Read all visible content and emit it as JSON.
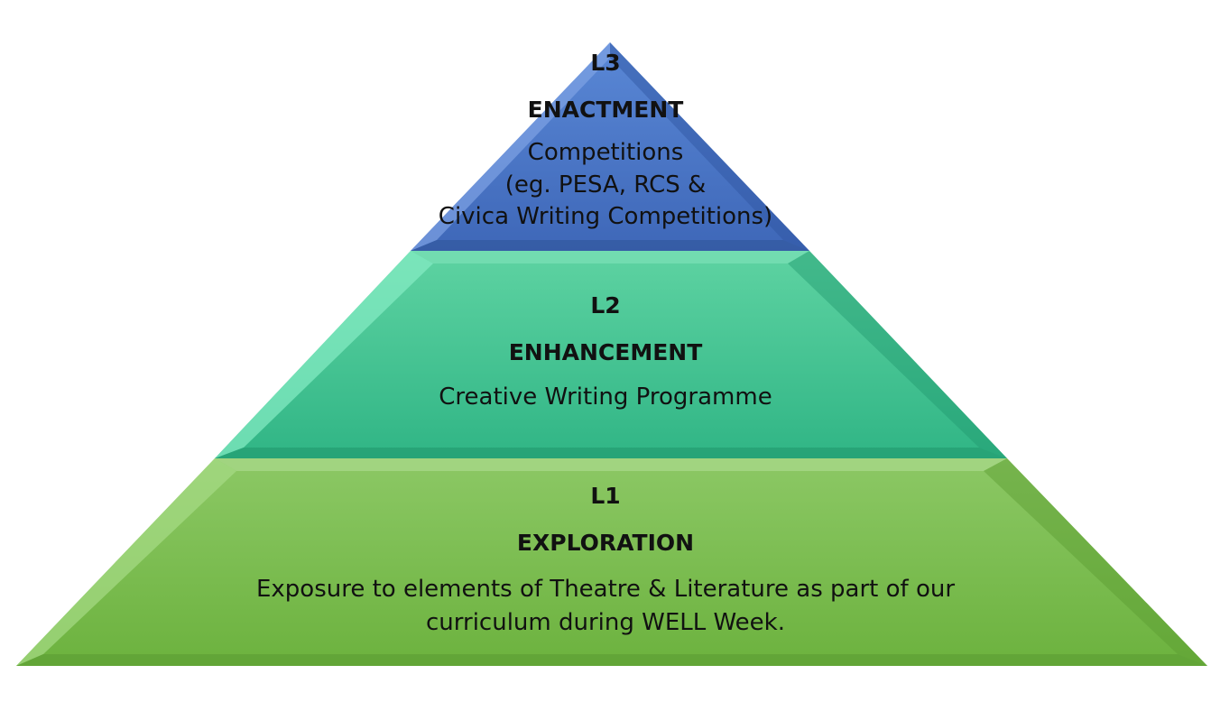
{
  "diagram": {
    "type": "pyramid",
    "levels": [
      {
        "id": "L3",
        "name": "ENACTMENT",
        "description_lines": [
          "Competitions",
          "(eg. PESA, RCS &",
          "Civica Writing Competitions)"
        ],
        "color": "#4472C4"
      },
      {
        "id": "L2",
        "name": "ENHANCEMENT",
        "description_lines": [
          "Creative Writing Programme"
        ],
        "color": "#3DBF8E"
      },
      {
        "id": "L1",
        "name": "EXPLORATION",
        "description_lines": [
          "Exposure to elements of Theatre & Literature as part of our",
          "curriculum during WELL Week."
        ],
        "color": "#7CC04F"
      }
    ]
  }
}
